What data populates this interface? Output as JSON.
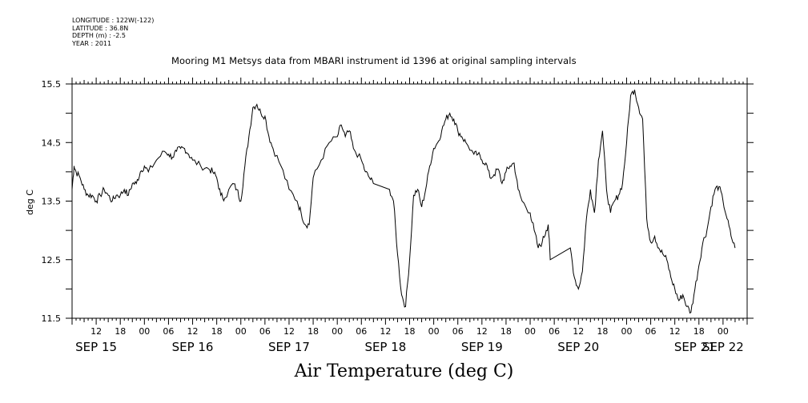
{
  "header": {
    "longitude": "LONGITUDE : 122W(-122)",
    "latitude": "LATITUDE : 36.8N",
    "depth": "DEPTH (m) : -2.5",
    "year": "YEAR : 2011"
  },
  "chart_data": {
    "type": "line",
    "title": "Mooring M1 Metsys data from MBARI instrument id 1396 at original sampling intervals",
    "footer_title": "Air Temperature (deg C)",
    "ylabel": "deg C",
    "xlabel": "",
    "ylim": [
      11.5,
      15.5
    ],
    "xlim_hours": [
      6,
      174
    ],
    "y_ticks": [
      "15.5",
      "14.5",
      "13.5",
      "12.5",
      "11.5"
    ],
    "hour_ticks": [
      "12",
      "18",
      "00",
      "06",
      "12",
      "18",
      "00",
      "06",
      "12",
      "18",
      "00",
      "06",
      "12",
      "18",
      "00",
      "06",
      "12",
      "18",
      "00",
      "06",
      "12",
      "18",
      "00",
      "06",
      "12",
      "18",
      "00"
    ],
    "date_ticks": [
      "SEP 15",
      "SEP 16",
      "SEP 17",
      "SEP 18",
      "SEP 19",
      "SEP 20",
      "SEP 21",
      "SEP 22"
    ],
    "grid": false,
    "line_color": "#000000",
    "series": [
      {
        "x": [
          "SEP 15 06:00",
          "SEP 15 06:30",
          "SEP 15 07:00",
          "SEP 15 08:00",
          "SEP 15 09:00",
          "SEP 15 10:00",
          "SEP 15 11:00",
          "SEP 15 12:00",
          "SEP 15 13:00",
          "SEP 15 14:00",
          "SEP 15 15:00",
          "SEP 15 16:00",
          "SEP 15 17:00",
          "SEP 15 18:00",
          "SEP 15 19:00",
          "SEP 15 20:00",
          "SEP 15 21:00",
          "SEP 15 22:00",
          "SEP 15 23:00",
          "SEP 16 00:00",
          "SEP 16 01:00",
          "SEP 16 03:00",
          "SEP 16 05:00",
          "SEP 16 06:00",
          "SEP 16 07:00",
          "SEP 16 08:00",
          "SEP 16 09:00",
          "SEP 16 10:00",
          "SEP 16 11:00",
          "SEP 16 12:00",
          "SEP 16 14:00",
          "SEP 16 16:00",
          "SEP 16 17:00",
          "SEP 16 18:00",
          "SEP 16 19:00",
          "SEP 16 20:00",
          "SEP 16 22:00",
          "SEP 16 23:00",
          "SEP 17 00:00",
          "SEP 17 01:00",
          "SEP 17 02:00",
          "SEP 17 03:00",
          "SEP 17 04:00",
          "SEP 17 05:00",
          "SEP 17 06:00",
          "SEP 17 07:00",
          "SEP 17 08:00",
          "SEP 17 10:00",
          "SEP 17 12:00",
          "SEP 17 14:00",
          "SEP 17 15:00",
          "SEP 17 16:00",
          "SEP 17 17:00",
          "SEP 17 18:00",
          "SEP 17 20:00",
          "SEP 17 22:00",
          "SEP 18 00:00",
          "SEP 18 01:00",
          "SEP 18 02:00",
          "SEP 18 03:00",
          "SEP 18 04:00",
          "SEP 18 06:00",
          "SEP 18 07:00",
          "SEP 18 08:00",
          "SEP 18 09:00",
          "SEP 18 13:00",
          "SEP 18 14:00",
          "SEP 18 15:00",
          "SEP 18 16:00",
          "SEP 18 17:00",
          "SEP 18 18:00",
          "SEP 18 19:00",
          "SEP 18 20:00",
          "SEP 18 21:00",
          "SEP 18 22:00",
          "SEP 18 23:00",
          "SEP 19 00:00",
          "SEP 19 01:00",
          "SEP 19 02:00",
          "SEP 19 03:00",
          "SEP 19 04:00",
          "SEP 19 05:00",
          "SEP 19 06:00",
          "SEP 19 07:00",
          "SEP 19 08:00",
          "SEP 19 10:00",
          "SEP 19 11:00",
          "SEP 19 12:00",
          "SEP 19 13:00",
          "SEP 19 14:00",
          "SEP 19 15:00",
          "SEP 19 16:00",
          "SEP 19 17:00",
          "SEP 19 18:00",
          "SEP 19 19:00",
          "SEP 19 20:00",
          "SEP 19 21:00",
          "SEP 19 22:00",
          "SEP 20 00:00",
          "SEP 20 01:00",
          "SEP 20 02:00",
          "SEP 20 03:00",
          "SEP 20 04:00",
          "SEP 20 04:30",
          "SEP 20 05:00",
          "SEP 20 10:00",
          "SEP 20 11:00",
          "SEP 20 12:00",
          "SEP 20 13:00",
          "SEP 20 14:00",
          "SEP 20 15:00",
          "SEP 20 16:00",
          "SEP 20 17:00",
          "SEP 20 18:00",
          "SEP 20 19:00",
          "SEP 20 20:00",
          "SEP 20 21:00",
          "SEP 20 22:00",
          "SEP 20 23:00",
          "SEP 21 00:00",
          "SEP 21 01:00",
          "SEP 21 02:00",
          "SEP 21 03:00",
          "SEP 21 04:00",
          "SEP 21 05:00",
          "SEP 21 06:00",
          "SEP 21 07:00",
          "SEP 21 08:00",
          "SEP 21 09:00",
          "SEP 21 10:00",
          "SEP 21 11:00",
          "SEP 21 12:00",
          "SEP 21 13:00",
          "SEP 21 14:00",
          "SEP 21 15:00",
          "SEP 21 16:00",
          "SEP 21 17:00",
          "SEP 21 18:00",
          "SEP 21 19:00",
          "SEP 21 20:00",
          "SEP 21 21:00",
          "SEP 21 22:00",
          "SEP 21 23:00",
          "SEP 22 00:00",
          "SEP 22 01:00",
          "SEP 22 02:00",
          "SEP 22 03:00"
        ],
        "y": [
          13.7,
          14.1,
          14.0,
          13.9,
          13.7,
          13.6,
          13.6,
          13.5,
          13.6,
          13.7,
          13.6,
          13.5,
          13.6,
          13.6,
          13.7,
          13.6,
          13.8,
          13.8,
          14.0,
          14.1,
          14.0,
          14.2,
          14.35,
          14.3,
          14.25,
          14.35,
          14.4,
          14.4,
          14.3,
          14.2,
          14.1,
          14.05,
          14.0,
          13.9,
          13.6,
          13.55,
          13.8,
          13.7,
          13.5,
          14.1,
          14.6,
          15.1,
          15.15,
          15.0,
          14.95,
          14.6,
          14.4,
          14.1,
          13.7,
          13.5,
          13.3,
          13.1,
          13.1,
          13.9,
          14.2,
          14.5,
          14.6,
          14.8,
          14.6,
          14.7,
          14.4,
          14.2,
          14.0,
          13.9,
          13.8,
          13.7,
          13.5,
          12.6,
          11.9,
          11.7,
          12.5,
          13.6,
          13.7,
          13.4,
          13.7,
          14.1,
          14.4,
          14.5,
          14.7,
          14.9,
          15.0,
          14.9,
          14.7,
          14.6,
          14.5,
          14.3,
          14.3,
          14.2,
          14.15,
          13.9,
          13.95,
          14.05,
          13.8,
          14.0,
          14.1,
          14.15,
          13.7,
          13.5,
          13.3,
          13.0,
          12.7,
          12.8,
          13.0,
          13.1,
          12.5,
          12.7,
          12.2,
          12.0,
          12.3,
          13.2,
          13.7,
          13.3,
          14.2,
          14.7,
          13.7,
          13.3,
          13.5,
          13.6,
          13.8,
          14.5,
          15.3,
          15.4,
          15.1,
          14.9,
          13.2,
          12.8,
          12.9,
          12.7,
          12.6,
          12.5,
          12.2,
          12.0,
          11.8,
          11.9,
          11.7,
          11.6,
          12.0,
          12.4,
          12.8,
          13.0,
          13.4,
          13.7,
          13.75,
          13.5,
          13.2,
          12.9,
          12.7
        ],
        "hours": [
          6,
          6.5,
          7,
          8,
          9,
          10,
          11,
          12,
          13,
          14,
          15,
          16,
          17,
          18,
          19,
          20,
          21,
          22,
          23,
          24,
          25,
          27,
          29,
          30,
          31,
          32,
          33,
          34,
          35,
          36,
          38,
          40,
          41,
          42,
          43,
          44,
          46,
          47,
          48,
          49,
          50,
          51,
          52,
          53,
          54,
          55,
          56,
          58,
          60,
          62,
          63,
          64,
          65,
          66,
          68,
          70,
          72,
          73,
          74,
          75,
          76,
          78,
          79,
          80,
          81,
          85,
          86,
          87,
          88,
          89,
          90,
          91,
          92,
          93,
          94,
          95,
          96,
          97,
          98,
          99,
          100,
          101,
          102,
          103,
          104,
          106,
          107,
          108,
          109,
          110,
          111,
          112,
          113,
          114,
          115,
          116,
          117,
          118,
          120,
          121,
          122,
          123,
          124,
          124.5,
          125,
          130,
          131,
          132,
          133,
          134,
          135,
          136,
          137,
          138,
          139,
          140,
          141,
          142,
          143,
          144,
          145,
          146,
          147,
          148,
          149,
          150,
          151,
          152,
          153,
          154,
          155,
          156,
          157,
          158,
          159,
          160,
          161,
          162,
          163,
          164,
          165,
          166,
          167,
          168,
          169,
          170,
          171
        ]
      }
    ]
  }
}
